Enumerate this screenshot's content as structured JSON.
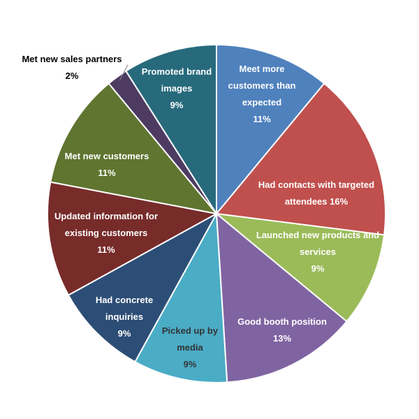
{
  "chart_data": {
    "type": "pie",
    "title": "",
    "start_angle_deg_clockwise_from_top": 0,
    "slices": [
      {
        "label_lines": [
          "Meet more",
          "customers than",
          "expected"
        ],
        "value": 11,
        "value_label": "11%",
        "color": "#4F81BD",
        "text_color": "#ffffff"
      },
      {
        "label_lines": [
          "Had contacts with targeted",
          "attendees 16%"
        ],
        "value": 16,
        "value_label": "",
        "color": "#C0504D",
        "text_color": "#ffffff"
      },
      {
        "label_lines": [
          "Launched new products and",
          "services"
        ],
        "value": 9,
        "value_label": "9%",
        "color": "#9BBB59",
        "text_color": "#ffffff"
      },
      {
        "label_lines": [
          "Good booth position"
        ],
        "value": 13,
        "value_label": "13%",
        "color": "#8064A2",
        "text_color": "#ffffff"
      },
      {
        "label_lines": [
          "Picked up by",
          "media"
        ],
        "value": 9,
        "value_label": "9%",
        "color": "#4BACC6",
        "text_color": "#333333"
      },
      {
        "label_lines": [
          "Had concrete",
          "inquiries"
        ],
        "value": 9,
        "value_label": "9%",
        "color": "#2C4D75",
        "text_color": "#ffffff"
      },
      {
        "label_lines": [
          "Updated information for",
          "existing customers"
        ],
        "value": 11,
        "value_label": "11%",
        "color": "#772C2A",
        "text_color": "#ffffff"
      },
      {
        "label_lines": [
          "Met new customers"
        ],
        "value": 11,
        "value_label": "11%",
        "color": "#5F7530",
        "text_color": "#ffffff"
      },
      {
        "label_lines": [
          "Met new sales partners"
        ],
        "value": 2,
        "value_label": "2%",
        "color": "#4D3B62",
        "text_color": "#000000"
      },
      {
        "label_lines": [
          "Promoted brand",
          "images"
        ],
        "value": 9,
        "value_label": "9%",
        "color": "#276A7C",
        "text_color": "#ffffff"
      }
    ]
  }
}
